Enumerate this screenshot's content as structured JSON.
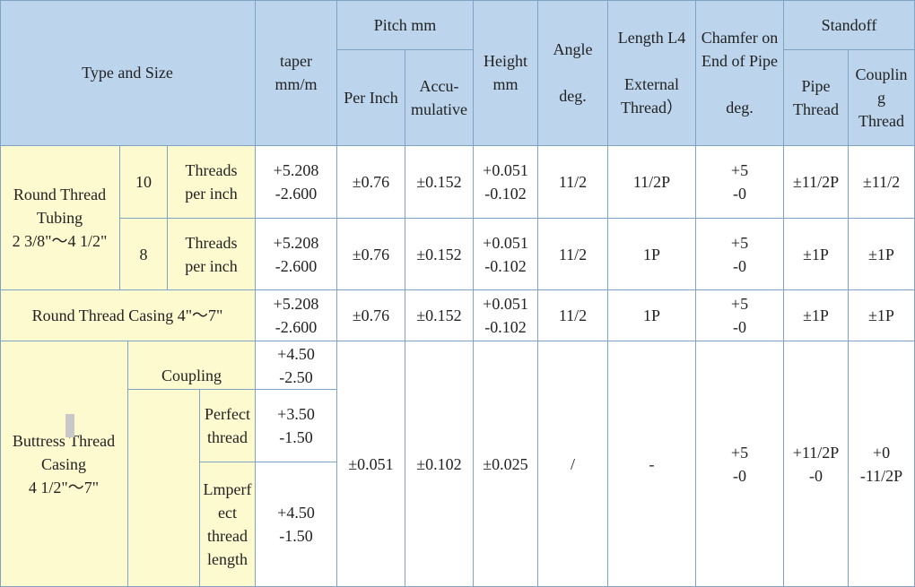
{
  "header": {
    "type_and_size": "Type and Size",
    "taper": [
      "taper",
      "mm/m"
    ],
    "pitch_mm": "Pitch mm",
    "per_inch": "Per Inch",
    "accumulative": [
      "Accu-",
      "mulative"
    ],
    "height": [
      "Height",
      "mm"
    ],
    "angle": [
      "Angle",
      "",
      "deg."
    ],
    "length_l4": [
      "Length L4",
      "",
      "External",
      "Thread）"
    ],
    "chamfer": [
      "Chamfer on",
      "End of Pipe",
      "",
      "deg."
    ],
    "standoff": "Standoff",
    "pipe_thread": [
      "Pipe",
      "Thread"
    ],
    "coupling_thread": [
      "Couplin",
      "g",
      "Thread"
    ]
  },
  "rows": {
    "tubing_type": [
      "Round Thread",
      "Tubing",
      "2 3/8\"～4 1/2\""
    ],
    "tubing_10": {
      "tpi": "10",
      "unit": [
        "Threads",
        "per inch"
      ],
      "taper": [
        "+5.208",
        "-2.600"
      ],
      "per_inch": "±0.76",
      "accumulative": "±0.152",
      "height": [
        "+0.051",
        "-0.102"
      ],
      "angle": "11/2",
      "length": "11/2P",
      "chamfer": [
        "+5",
        "-0"
      ],
      "pipe": "±11/2P",
      "coupling": "±11/2"
    },
    "tubing_8": {
      "tpi": "8",
      "unit": [
        "Threads",
        "per inch"
      ],
      "taper": [
        "+5.208",
        "-2.600"
      ],
      "per_inch": "±0.76",
      "accumulative": "±0.152",
      "height": [
        "+0.051",
        "-0.102"
      ],
      "angle": "11/2",
      "length": "1P",
      "chamfer": [
        "+5",
        "-0"
      ],
      "pipe": "±1P",
      "coupling": "±1P"
    },
    "casing": {
      "type": "Round Thread Casing 4\"～7\"",
      "taper": [
        "+5.208",
        "-2.600"
      ],
      "per_inch": "±0.76",
      "accumulative": "±0.152",
      "height": [
        "+0.051",
        "-0.102"
      ],
      "angle": "11/2",
      "length": "1P",
      "chamfer": [
        "+5",
        "-0"
      ],
      "pipe": "±1P",
      "coupling": "±1P"
    },
    "buttress": {
      "type": [
        "Buttress Thread",
        "Casing",
        "4 1/2\"～7\""
      ],
      "coupling_label": "Coupling",
      "coupling_taper": [
        "+4.50",
        "-2.50"
      ],
      "perfect_label": [
        "Perfect",
        "thread"
      ],
      "perfect_taper": [
        "+3.50",
        "-1.50"
      ],
      "imperfect_label": [
        "Lmperf",
        "ect",
        "thread",
        "length"
      ],
      "imperfect_taper": [
        "+4.50",
        "-1.50"
      ],
      "per_inch": "±0.051",
      "accumulative": "±0.102",
      "height": "±0.025",
      "angle": "/",
      "length": "-",
      "chamfer": [
        "+5",
        "-0"
      ],
      "pipe": [
        "+11/2P",
        "-0"
      ],
      "coupling": [
        "+0",
        "-11/2P"
      ]
    }
  }
}
